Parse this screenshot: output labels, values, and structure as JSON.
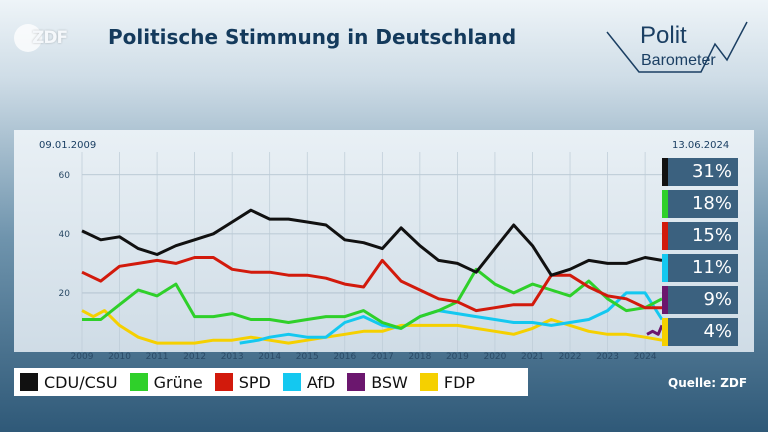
{
  "header": {
    "broadcaster_logo": "ZDF",
    "title": "Politische Stimmung in Deutschland",
    "politbarometer": {
      "line1": "Polit",
      "line2": "Barometer"
    }
  },
  "dates": {
    "start": "09.01.2009",
    "end": "13.06.2024"
  },
  "source": "Quelle: ZDF",
  "colors": {
    "CDU/CSU": "#111111",
    "Grüne": "#2fd02a",
    "SPD": "#d21a0c",
    "AfD": "#14c8f0",
    "BSW": "#6b176e",
    "FDP": "#f5d000"
  },
  "badges": [
    {
      "party": "CDU/CSU",
      "label": "31%"
    },
    {
      "party": "Grüne",
      "label": "18%"
    },
    {
      "party": "SPD",
      "label": "15%"
    },
    {
      "party": "AfD",
      "label": "11%"
    },
    {
      "party": "BSW",
      "label": "9%"
    },
    {
      "party": "FDP",
      "label": "4%"
    }
  ],
  "chart_data": {
    "type": "line",
    "title": "Politische Stimmung in Deutschland",
    "xlabel": "",
    "ylabel": "",
    "xlim": [
      2009,
      2024.45
    ],
    "ylim": [
      0,
      65
    ],
    "grid": true,
    "legend_position": "bottom",
    "x_ticks": [
      "2009",
      "2010",
      "2011",
      "2012",
      "2013",
      "2014",
      "2015",
      "2016",
      "2017",
      "2018",
      "2019",
      "2020",
      "2021",
      "2022",
      "2023",
      "2024"
    ],
    "y_ticks": [
      "20",
      "40",
      "60"
    ],
    "series": [
      {
        "name": "CDU/CSU",
        "points": [
          [
            2009,
            41
          ],
          [
            2009.5,
            38
          ],
          [
            2010,
            39
          ],
          [
            2010.5,
            35
          ],
          [
            2011,
            33
          ],
          [
            2011.5,
            36
          ],
          [
            2012,
            38
          ],
          [
            2012.5,
            40
          ],
          [
            2013,
            44
          ],
          [
            2013.5,
            48
          ],
          [
            2014,
            45
          ],
          [
            2014.5,
            45
          ],
          [
            2015,
            44
          ],
          [
            2015.5,
            43
          ],
          [
            2016,
            38
          ],
          [
            2016.5,
            37
          ],
          [
            2017,
            35
          ],
          [
            2017.5,
            42
          ],
          [
            2018,
            36
          ],
          [
            2018.5,
            31
          ],
          [
            2019,
            30
          ],
          [
            2019.5,
            27
          ],
          [
            2020,
            35
          ],
          [
            2020.5,
            43
          ],
          [
            2021,
            36
          ],
          [
            2021.5,
            26
          ],
          [
            2022,
            28
          ],
          [
            2022.5,
            31
          ],
          [
            2023,
            30
          ],
          [
            2023.5,
            30
          ],
          [
            2024,
            32
          ],
          [
            2024.45,
            31
          ]
        ]
      },
      {
        "name": "Grüne",
        "points": [
          [
            2009,
            11
          ],
          [
            2009.5,
            11
          ],
          [
            2010,
            16
          ],
          [
            2010.5,
            21
          ],
          [
            2011,
            19
          ],
          [
            2011.5,
            23
          ],
          [
            2012,
            12
          ],
          [
            2012.5,
            12
          ],
          [
            2013,
            13
          ],
          [
            2013.5,
            11
          ],
          [
            2014,
            11
          ],
          [
            2014.5,
            10
          ],
          [
            2015,
            11
          ],
          [
            2015.5,
            12
          ],
          [
            2016,
            12
          ],
          [
            2016.5,
            14
          ],
          [
            2017,
            10
          ],
          [
            2017.5,
            8
          ],
          [
            2018,
            12
          ],
          [
            2018.5,
            14
          ],
          [
            2019,
            17
          ],
          [
            2019.5,
            28
          ],
          [
            2020,
            23
          ],
          [
            2020.5,
            20
          ],
          [
            2021,
            23
          ],
          [
            2021.5,
            21
          ],
          [
            2022,
            19
          ],
          [
            2022.5,
            24
          ],
          [
            2023,
            18
          ],
          [
            2023.5,
            14
          ],
          [
            2024,
            15
          ],
          [
            2024.45,
            18
          ]
        ]
      },
      {
        "name": "SPD",
        "points": [
          [
            2009,
            27
          ],
          [
            2009.5,
            24
          ],
          [
            2010,
            29
          ],
          [
            2010.5,
            30
          ],
          [
            2011,
            31
          ],
          [
            2011.5,
            30
          ],
          [
            2012,
            32
          ],
          [
            2012.5,
            32
          ],
          [
            2013,
            28
          ],
          [
            2013.5,
            27
          ],
          [
            2014,
            27
          ],
          [
            2014.5,
            26
          ],
          [
            2015,
            26
          ],
          [
            2015.5,
            25
          ],
          [
            2016,
            23
          ],
          [
            2016.5,
            22
          ],
          [
            2017,
            31
          ],
          [
            2017.5,
            24
          ],
          [
            2018,
            21
          ],
          [
            2018.5,
            18
          ],
          [
            2019,
            17
          ],
          [
            2019.5,
            14
          ],
          [
            2020,
            15
          ],
          [
            2020.5,
            16
          ],
          [
            2021,
            16
          ],
          [
            2021.5,
            26
          ],
          [
            2022,
            26
          ],
          [
            2022.5,
            22
          ],
          [
            2023,
            19
          ],
          [
            2023.5,
            18
          ],
          [
            2024,
            15
          ],
          [
            2024.45,
            15
          ]
        ]
      },
      {
        "name": "AfD",
        "points": [
          [
            2013.2,
            3
          ],
          [
            2013.7,
            4
          ],
          [
            2014,
            5
          ],
          [
            2014.5,
            6
          ],
          [
            2015,
            5
          ],
          [
            2015.5,
            5
          ],
          [
            2016,
            10
          ],
          [
            2016.5,
            12
          ],
          [
            2017,
            9
          ],
          [
            2017.5,
            8
          ],
          [
            2018,
            12
          ],
          [
            2018.5,
            14
          ],
          [
            2019,
            13
          ],
          [
            2019.5,
            12
          ],
          [
            2020,
            11
          ],
          [
            2020.5,
            10
          ],
          [
            2021,
            10
          ],
          [
            2021.5,
            9
          ],
          [
            2022,
            10
          ],
          [
            2022.5,
            11
          ],
          [
            2023,
            14
          ],
          [
            2023.5,
            20
          ],
          [
            2024,
            20
          ],
          [
            2024.45,
            11
          ]
        ]
      },
      {
        "name": "BSW",
        "points": [
          [
            2024.05,
            6
          ],
          [
            2024.2,
            7
          ],
          [
            2024.35,
            6
          ],
          [
            2024.45,
            9
          ]
        ]
      },
      {
        "name": "FDP",
        "points": [
          [
            2009,
            14
          ],
          [
            2009.3,
            12
          ],
          [
            2009.6,
            14
          ],
          [
            2010,
            9
          ],
          [
            2010.5,
            5
          ],
          [
            2011,
            3
          ],
          [
            2011.5,
            3
          ],
          [
            2012,
            3
          ],
          [
            2012.5,
            4
          ],
          [
            2013,
            4
          ],
          [
            2013.5,
            5
          ],
          [
            2014,
            4
          ],
          [
            2014.5,
            3
          ],
          [
            2015,
            4
          ],
          [
            2015.5,
            5
          ],
          [
            2016,
            6
          ],
          [
            2016.5,
            7
          ],
          [
            2017,
            7
          ],
          [
            2017.5,
            9
          ],
          [
            2018,
            9
          ],
          [
            2018.5,
            9
          ],
          [
            2019,
            9
          ],
          [
            2019.5,
            8
          ],
          [
            2020,
            7
          ],
          [
            2020.5,
            6
          ],
          [
            2021,
            8
          ],
          [
            2021.5,
            11
          ],
          [
            2022,
            9
          ],
          [
            2022.5,
            7
          ],
          [
            2023,
            6
          ],
          [
            2023.5,
            6
          ],
          [
            2024,
            5
          ],
          [
            2024.45,
            4
          ]
        ]
      }
    ]
  }
}
